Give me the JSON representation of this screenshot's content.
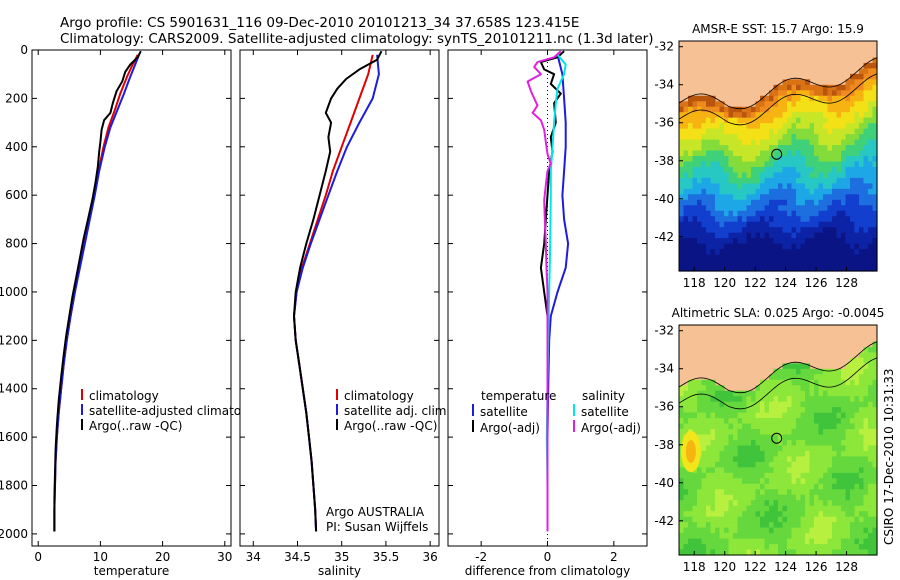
{
  "title": {
    "line1": "Argo profile: CS 5901631_116 09-Dec-2010 20101213_34 37.658S 123.415E",
    "line2": "Climatology: CARS2009. Satellite-adjusted climatology: synTS_20101211.nc (1.3d later)"
  },
  "side_text": "CSIRO 17-Dec-2010 10:31:33",
  "colors": {
    "climatology": "#e00000",
    "satellite": "#1c1ce0",
    "argo": "#000000",
    "sat_salinity": "#00e6e6",
    "argo_salinity": "#e020e0",
    "land": "#f6c195"
  },
  "chart_data": [
    {
      "type": "line",
      "name": "temperature-profile",
      "xlabel": "temperature",
      "xlim": [
        -1,
        31
      ],
      "ylim": [
        2050,
        0
      ],
      "xticks": [
        0,
        10,
        20,
        30
      ],
      "yticks": [
        0,
        200,
        400,
        600,
        800,
        1000,
        1200,
        1400,
        1600,
        1800,
        2000
      ],
      "legend": [
        "climatology",
        "satellite-adjusted climatology",
        "Argo(..raw -QC)"
      ],
      "series": [
        {
          "key": "climatology",
          "color": "#e00000",
          "points": [
            [
              16.0,
              20
            ],
            [
              15.2,
              60
            ],
            [
              14.3,
              110
            ],
            [
              13.2,
              180
            ],
            [
              12.3,
              250
            ],
            [
              11.3,
              320
            ],
            [
              10.5,
              400
            ],
            [
              9.7,
              500
            ],
            [
              9.0,
              600
            ],
            [
              8.2,
              700
            ],
            [
              7.4,
              800
            ],
            [
              6.6,
              900
            ],
            [
              5.9,
              1000
            ],
            [
              5.2,
              1100
            ],
            [
              4.6,
              1200
            ],
            [
              4.1,
              1300
            ],
            [
              3.7,
              1400
            ],
            [
              3.3,
              1500
            ],
            [
              3.0,
              1600
            ],
            [
              2.8,
              1700
            ],
            [
              2.7,
              1800
            ],
            [
              2.6,
              1900
            ],
            [
              2.6,
              1990
            ]
          ]
        },
        {
          "key": "satellite",
          "color": "#1c1ce0",
          "points": [
            [
              16.2,
              20
            ],
            [
              15.6,
              60
            ],
            [
              14.8,
              110
            ],
            [
              13.8,
              180
            ],
            [
              12.7,
              250
            ],
            [
              11.6,
              320
            ],
            [
              10.7,
              400
            ],
            [
              9.8,
              500
            ],
            [
              9.1,
              600
            ],
            [
              8.3,
              700
            ],
            [
              7.5,
              800
            ],
            [
              6.7,
              900
            ],
            [
              5.9,
              1000
            ],
            [
              5.2,
              1100
            ],
            [
              4.6,
              1200
            ],
            [
              4.1,
              1300
            ],
            [
              3.7,
              1400
            ],
            [
              3.3,
              1500
            ],
            [
              3.0,
              1600
            ],
            [
              2.8,
              1700
            ],
            [
              2.7,
              1800
            ],
            [
              2.6,
              1900
            ],
            [
              2.6,
              1990
            ]
          ]
        },
        {
          "key": "argo",
          "color": "#000000",
          "points": [
            [
              16.5,
              5
            ],
            [
              16.0,
              30
            ],
            [
              14.8,
              60
            ],
            [
              14.0,
              90
            ],
            [
              13.5,
              130
            ],
            [
              12.6,
              170
            ],
            [
              12.0,
              220
            ],
            [
              11.6,
              260
            ],
            [
              10.6,
              290
            ],
            [
              10.2,
              330
            ],
            [
              10.0,
              380
            ],
            [
              9.8,
              420
            ],
            [
              9.6,
              480
            ],
            [
              9.2,
              550
            ],
            [
              8.7,
              620
            ],
            [
              8.0,
              700
            ],
            [
              7.3,
              780
            ],
            [
              6.7,
              860
            ],
            [
              6.1,
              940
            ],
            [
              5.5,
              1020
            ],
            [
              5.0,
              1100
            ],
            [
              4.5,
              1180
            ],
            [
              4.1,
              1260
            ],
            [
              3.7,
              1350
            ],
            [
              3.3,
              1450
            ],
            [
              3.0,
              1550
            ],
            [
              2.8,
              1650
            ],
            [
              2.7,
              1750
            ],
            [
              2.6,
              1850
            ],
            [
              2.6,
              1990
            ]
          ]
        }
      ]
    },
    {
      "type": "line",
      "name": "salinity-profile",
      "xlabel": "salinity",
      "xlim": [
        33.85,
        36.1
      ],
      "ylim": [
        2050,
        0
      ],
      "xticks": [
        34,
        34.5,
        35,
        35.5,
        36
      ],
      "xticklabels": [
        "34",
        "34.5",
        "35",
        "35.5",
        "36"
      ],
      "legend": [
        "climatology",
        "satellite adj. clim.",
        "Argo(..raw -QC)"
      ],
      "annotation": [
        "Argo AUSTRALIA",
        "PI: Susan Wijffels"
      ],
      "series": [
        {
          "key": "climatology",
          "color": "#e00000",
          "points": [
            [
              35.35,
              20
            ],
            [
              35.3,
              100
            ],
            [
              35.2,
              200
            ],
            [
              35.1,
              300
            ],
            [
              35.0,
              400
            ],
            [
              34.9,
              500
            ],
            [
              34.82,
              600
            ],
            [
              34.73,
              700
            ],
            [
              34.64,
              800
            ],
            [
              34.55,
              900
            ],
            [
              34.49,
              1000
            ],
            [
              34.46,
              1100
            ],
            [
              34.48,
              1200
            ],
            [
              34.52,
              1300
            ],
            [
              34.56,
              1400
            ],
            [
              34.6,
              1500
            ],
            [
              34.63,
              1600
            ],
            [
              34.66,
              1700
            ],
            [
              34.68,
              1800
            ],
            [
              34.7,
              1900
            ],
            [
              34.71,
              1990
            ]
          ]
        },
        {
          "key": "satellite",
          "color": "#1c1ce0",
          "points": [
            [
              35.4,
              20
            ],
            [
              35.42,
              100
            ],
            [
              35.35,
              200
            ],
            [
              35.2,
              300
            ],
            [
              35.06,
              400
            ],
            [
              34.95,
              500
            ],
            [
              34.85,
              600
            ],
            [
              34.75,
              700
            ],
            [
              34.65,
              800
            ],
            [
              34.56,
              900
            ],
            [
              34.49,
              1000
            ],
            [
              34.46,
              1100
            ],
            [
              34.48,
              1200
            ],
            [
              34.52,
              1300
            ],
            [
              34.56,
              1400
            ],
            [
              34.6,
              1500
            ],
            [
              34.63,
              1600
            ],
            [
              34.66,
              1700
            ],
            [
              34.68,
              1800
            ],
            [
              34.7,
              1900
            ],
            [
              34.71,
              1990
            ]
          ]
        },
        {
          "key": "argo",
          "color": "#000000",
          "points": [
            [
              35.45,
              5
            ],
            [
              35.4,
              40
            ],
            [
              35.2,
              80
            ],
            [
              35.05,
              120
            ],
            [
              34.95,
              160
            ],
            [
              34.88,
              200
            ],
            [
              34.82,
              260
            ],
            [
              34.88,
              300
            ],
            [
              34.85,
              360
            ],
            [
              34.87,
              420
            ],
            [
              34.82,
              500
            ],
            [
              34.75,
              600
            ],
            [
              34.68,
              700
            ],
            [
              34.6,
              800
            ],
            [
              34.53,
              900
            ],
            [
              34.48,
              1000
            ],
            [
              34.46,
              1100
            ],
            [
              34.48,
              1200
            ],
            [
              34.52,
              1300
            ],
            [
              34.56,
              1400
            ],
            [
              34.6,
              1500
            ],
            [
              34.63,
              1600
            ],
            [
              34.66,
              1700
            ],
            [
              34.68,
              1800
            ],
            [
              34.7,
              1900
            ],
            [
              34.71,
              1990
            ]
          ]
        }
      ]
    },
    {
      "type": "line",
      "name": "difference-profile",
      "xlabel": "difference from climatology",
      "xlim": [
        -3,
        3
      ],
      "ylim": [
        2050,
        0
      ],
      "xticks": [
        -2,
        0,
        2
      ],
      "legend_temperature": [
        "temperature",
        "satellite",
        "Argo(-adj)"
      ],
      "legend_salinity": [
        "salinity",
        "satellite",
        "Argo(-adj)"
      ],
      "series": [
        {
          "key": "temp-satellite",
          "color": "#1c1ce0",
          "points": [
            [
              0.3,
              20
            ],
            [
              0.45,
              100
            ],
            [
              0.5,
              200
            ],
            [
              0.55,
              300
            ],
            [
              0.55,
              400
            ],
            [
              0.5,
              500
            ],
            [
              0.45,
              600
            ],
            [
              0.5,
              700
            ],
            [
              0.62,
              800
            ],
            [
              0.55,
              900
            ],
            [
              0.3,
              1000
            ],
            [
              0.1,
              1100
            ],
            [
              0.05,
              1200
            ],
            [
              0.02,
              1400
            ],
            [
              0.0,
              1600
            ],
            [
              0.0,
              1800
            ],
            [
              0.0,
              1990
            ]
          ]
        },
        {
          "key": "temp-argo",
          "color": "#000000",
          "points": [
            [
              0.5,
              5
            ],
            [
              0.3,
              30
            ],
            [
              -0.2,
              50
            ],
            [
              -0.1,
              80
            ],
            [
              0.2,
              100
            ],
            [
              0.1,
              140
            ],
            [
              0.4,
              180
            ],
            [
              0.2,
              220
            ],
            [
              0.25,
              300
            ],
            [
              0.1,
              360
            ],
            [
              0.15,
              420
            ],
            [
              0.05,
              500
            ],
            [
              0.0,
              600
            ],
            [
              -0.05,
              700
            ],
            [
              -0.1,
              800
            ],
            [
              -0.2,
              900
            ],
            [
              -0.1,
              1000
            ],
            [
              0.0,
              1100
            ],
            [
              0.0,
              1300
            ],
            [
              0.0,
              1600
            ],
            [
              0.0,
              1990
            ]
          ]
        },
        {
          "key": "sal-satellite",
          "color": "#00e6e6",
          "points": [
            [
              0.3,
              20
            ],
            [
              0.55,
              60
            ],
            [
              0.5,
              100
            ],
            [
              0.3,
              160
            ],
            [
              0.25,
              220
            ],
            [
              0.2,
              300
            ],
            [
              0.15,
              400
            ],
            [
              0.1,
              500
            ],
            [
              0.1,
              600
            ],
            [
              0.08,
              800
            ],
            [
              0.05,
              1000
            ],
            [
              0.02,
              1200
            ],
            [
              0.0,
              1400
            ],
            [
              -0.02,
              1600
            ],
            [
              0.0,
              1800
            ],
            [
              0.0,
              1990
            ]
          ]
        },
        {
          "key": "sal-argo",
          "color": "#e020e0",
          "points": [
            [
              0.4,
              5
            ],
            [
              0.2,
              30
            ],
            [
              -0.3,
              50
            ],
            [
              -0.4,
              70
            ],
            [
              -0.2,
              100
            ],
            [
              -0.6,
              130
            ],
            [
              -0.5,
              170
            ],
            [
              -0.4,
              200
            ],
            [
              -0.3,
              230
            ],
            [
              -0.45,
              260
            ],
            [
              -0.2,
              290
            ],
            [
              -0.1,
              330
            ],
            [
              -0.05,
              380
            ],
            [
              0.0,
              430
            ],
            [
              0.1,
              470
            ],
            [
              0.0,
              500
            ],
            [
              -0.05,
              560
            ],
            [
              -0.1,
              620
            ],
            [
              -0.08,
              700
            ],
            [
              -0.05,
              800
            ],
            [
              -0.03,
              900
            ],
            [
              0.0,
              1000
            ],
            [
              0.0,
              1200
            ],
            [
              0.0,
              1500
            ],
            [
              0.0,
              1990
            ]
          ]
        }
      ]
    },
    {
      "type": "heatmap",
      "name": "sst-map",
      "title": "AMSR-E SST: 15.7 Argo: 15.9",
      "xlim": [
        117,
        130
      ],
      "ylim": [
        -43.8,
        -31.7
      ],
      "xticks": [
        118,
        120,
        122,
        124,
        126,
        128
      ],
      "yticks": [
        -32,
        -34,
        -36,
        -38,
        -40,
        -42
      ],
      "marker": [
        123.415,
        -37.658
      ]
    },
    {
      "type": "heatmap",
      "name": "sla-map",
      "title": "Altimetric SLA: 0.025 Argo: -0.0045",
      "xlim": [
        117,
        130
      ],
      "ylim": [
        -43.8,
        -31.7
      ],
      "xticks": [
        118,
        120,
        122,
        124,
        126,
        128
      ],
      "yticks": [
        -32,
        -34,
        -36,
        -38,
        -40,
        -42
      ],
      "marker": [
        123.415,
        -37.658
      ]
    }
  ]
}
